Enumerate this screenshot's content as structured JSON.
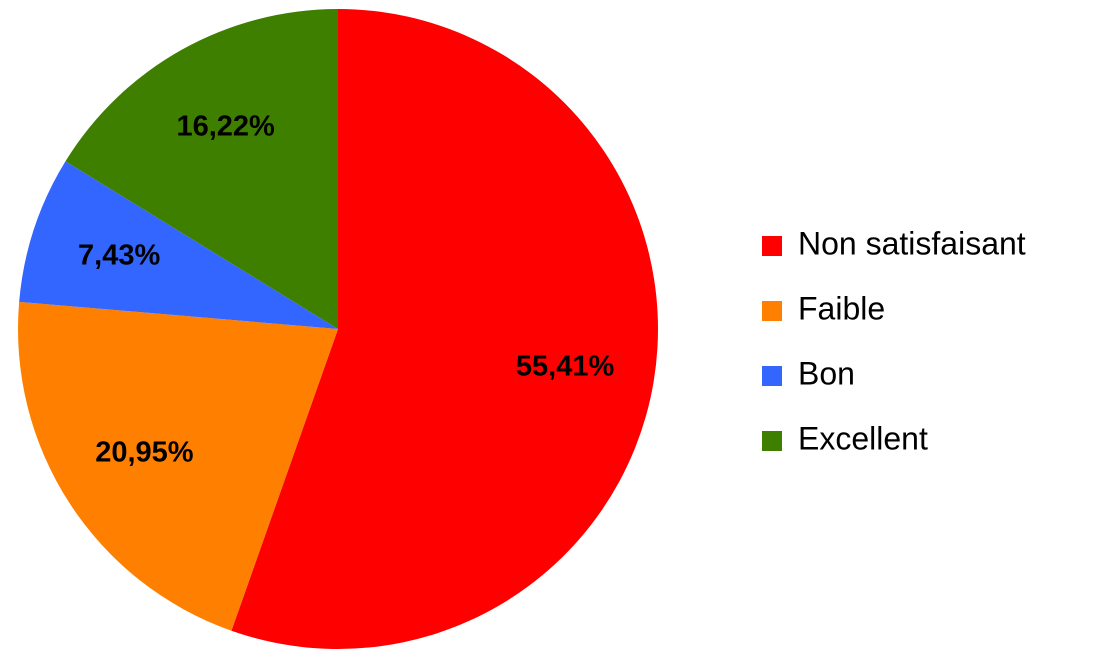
{
  "chart_data": {
    "type": "pie",
    "categories": [
      "Non satisfaisant",
      "Faible",
      "Bon",
      "Excellent"
    ],
    "values": [
      55.41,
      20.95,
      7.43,
      16.22
    ],
    "value_labels": [
      "55,41%",
      "20,95%",
      "7,43%",
      "16,22%"
    ],
    "colors": [
      "#ff0000",
      "#ff8000",
      "#3366ff",
      "#3f7f00"
    ],
    "legend": "right"
  }
}
